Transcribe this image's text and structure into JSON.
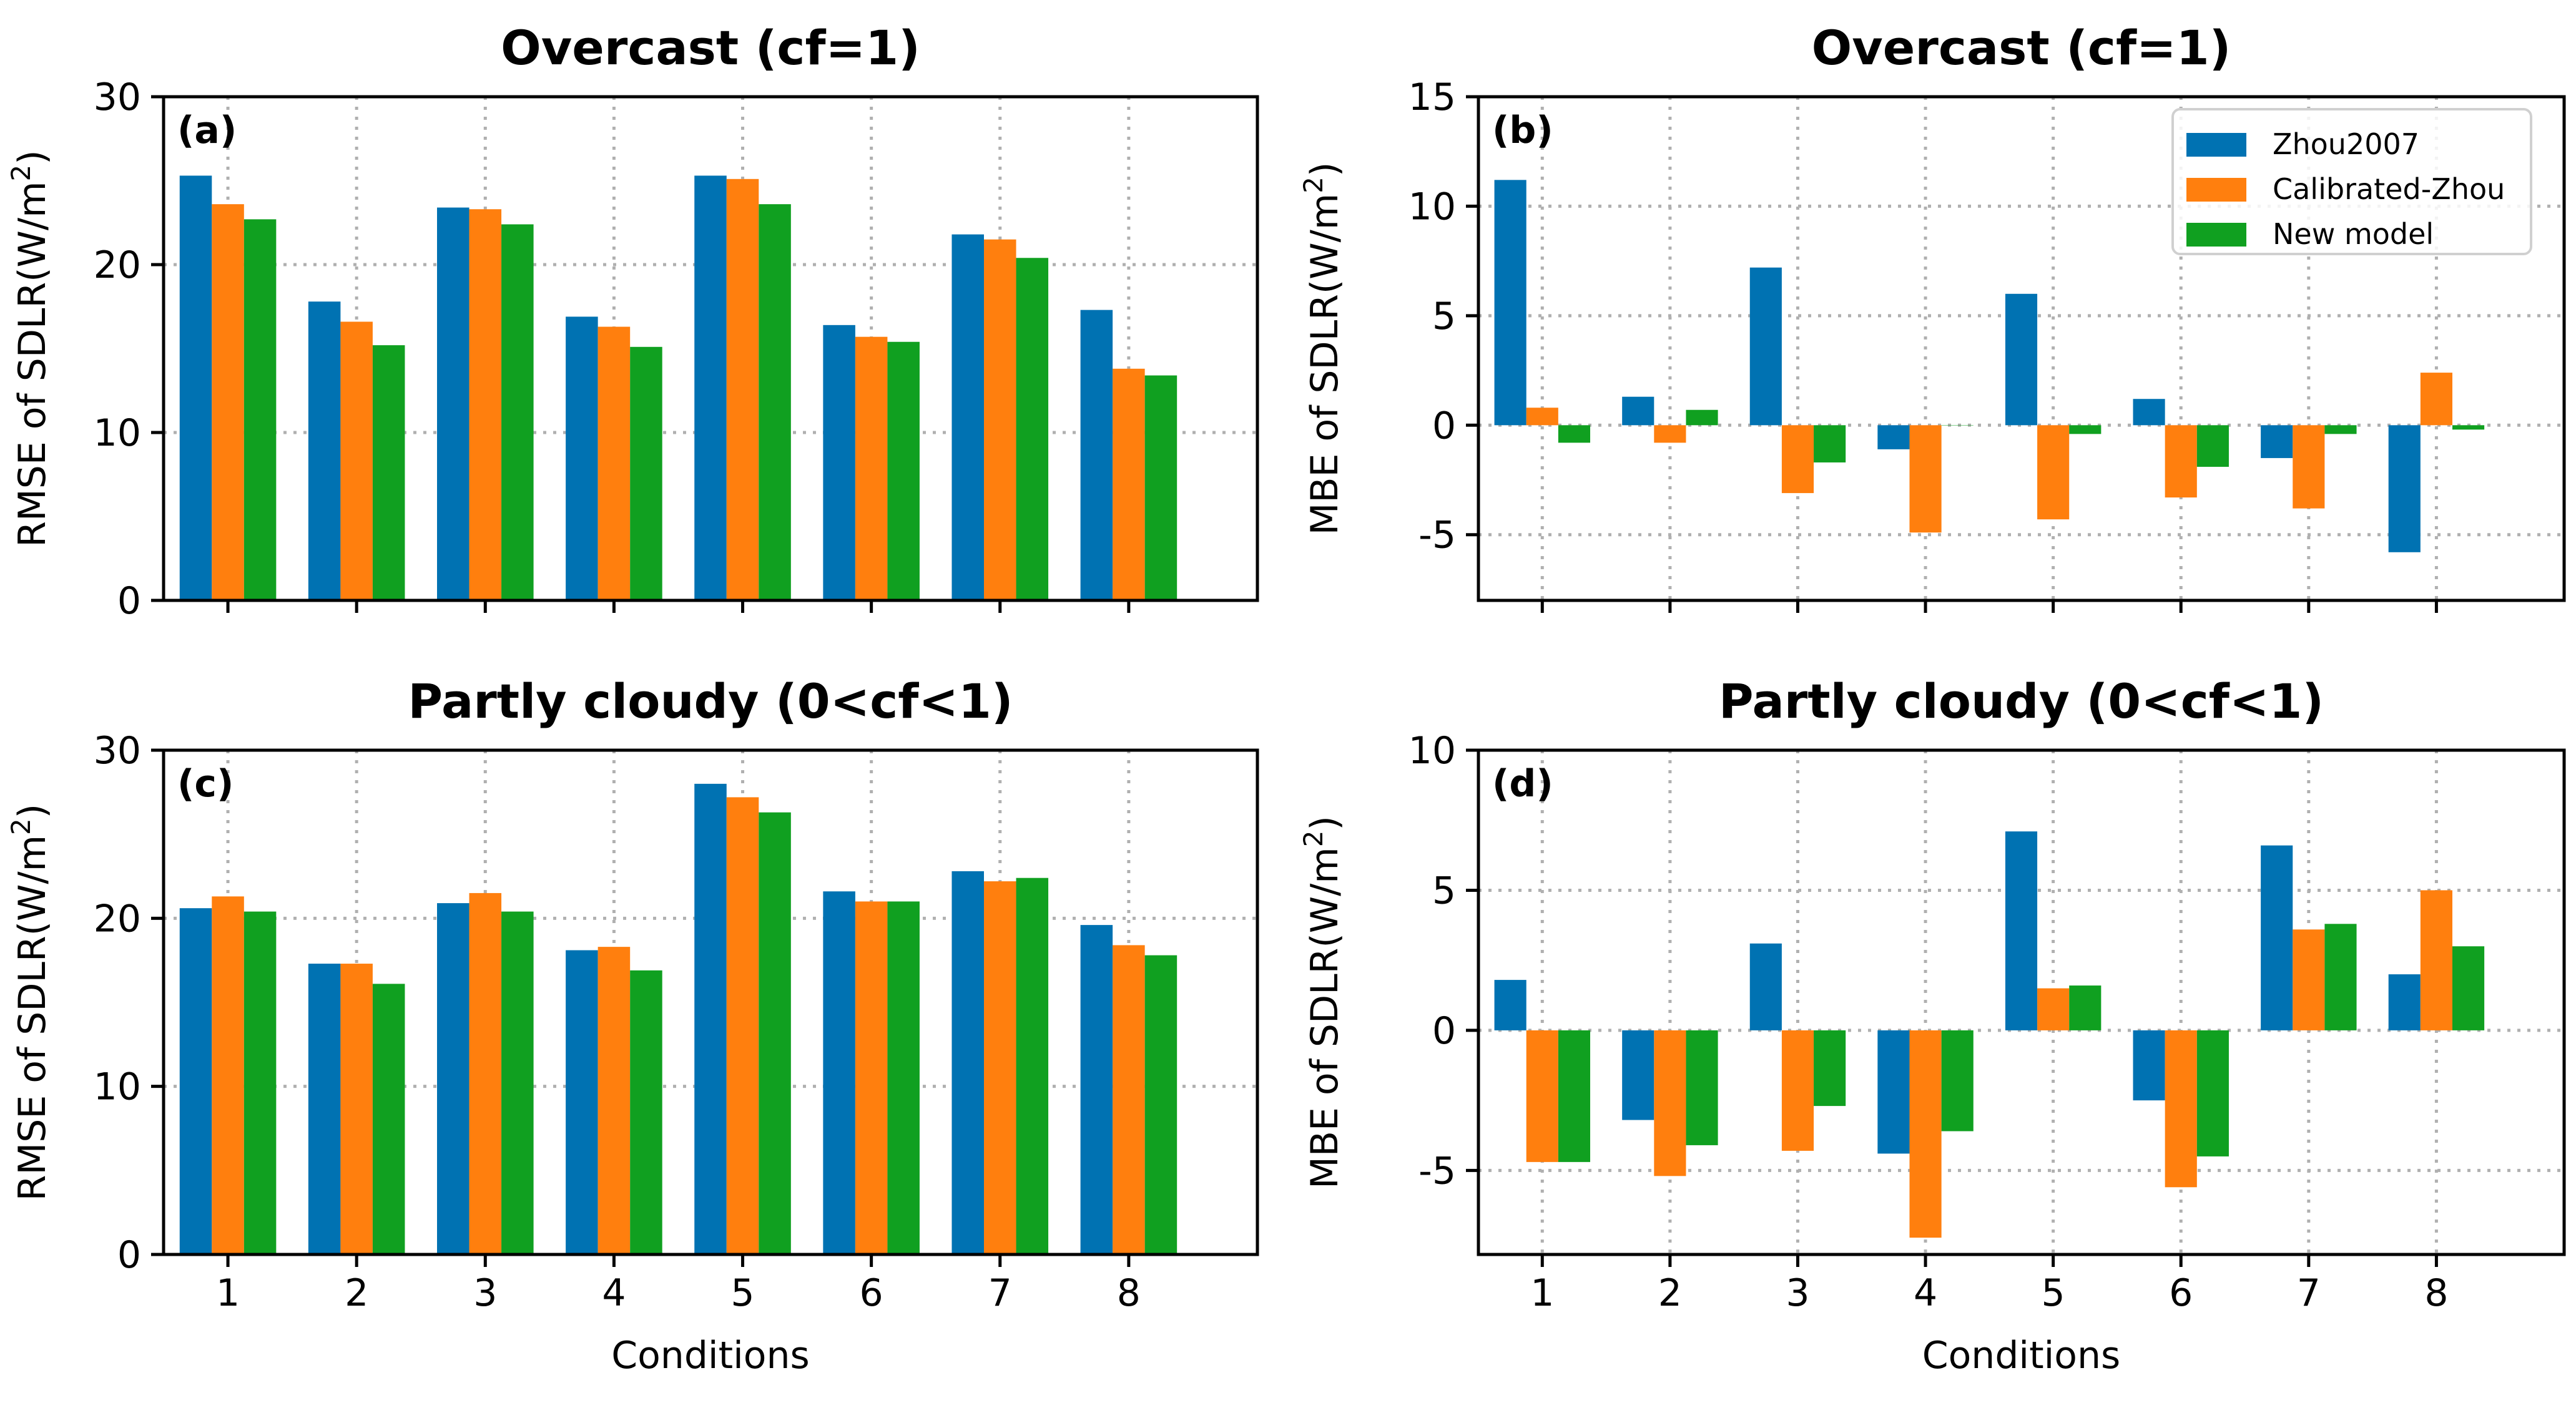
{
  "colors": {
    "Zhou2007": "#0072b2",
    "Calibrated-Zhou": "#ff7f0e",
    "New model": "#10a020"
  },
  "legend": [
    "Zhou2007",
    "Calibrated-Zhou",
    "New model"
  ],
  "chart_data": [
    {
      "id": "a",
      "panel_label": "(a)",
      "type": "bar",
      "title": "Overcast (cf=1)",
      "xlabel": "",
      "ylabel": "RMSE of SDLR(W/m",
      "categories": [
        "1",
        "2",
        "3",
        "4",
        "5",
        "6",
        "7",
        "8"
      ],
      "ylim": [
        0,
        30
      ],
      "yticks": [
        0,
        10,
        20,
        30
      ],
      "grid": true,
      "series": [
        {
          "name": "Zhou2007",
          "values": [
            25.3,
            17.8,
            23.4,
            16.9,
            25.3,
            16.4,
            21.8,
            17.3
          ]
        },
        {
          "name": "Calibrated-Zhou",
          "values": [
            23.6,
            16.6,
            23.3,
            16.3,
            25.1,
            15.7,
            21.5,
            13.8
          ]
        },
        {
          "name": "New model",
          "values": [
            22.7,
            15.2,
            22.4,
            15.1,
            23.6,
            15.4,
            20.4,
            13.4
          ]
        }
      ]
    },
    {
      "id": "b",
      "panel_label": "(b)",
      "type": "bar",
      "title": "Overcast (cf=1)",
      "xlabel": "",
      "ylabel": "MBE of SDLR(W/m",
      "categories": [
        "1",
        "2",
        "3",
        "4",
        "5",
        "6",
        "7",
        "8"
      ],
      "ylim": [
        -8,
        15
      ],
      "yticks": [
        -5,
        0,
        5,
        10,
        15
      ],
      "grid": true,
      "legend_position": "top-right",
      "series": [
        {
          "name": "Zhou2007",
          "values": [
            11.2,
            1.3,
            7.2,
            -1.1,
            6.0,
            1.2,
            -1.5,
            -5.8
          ]
        },
        {
          "name": "Calibrated-Zhou",
          "values": [
            0.8,
            -0.8,
            -3.1,
            -4.9,
            -4.3,
            -3.3,
            -3.8,
            2.4
          ]
        },
        {
          "name": "New model",
          "values": [
            -0.8,
            0.7,
            -1.7,
            0.0,
            -0.4,
            -1.9,
            -0.4,
            -0.2
          ]
        }
      ]
    },
    {
      "id": "c",
      "panel_label": "(c)",
      "type": "bar",
      "title": "Partly cloudy (0<cf<1)",
      "xlabel": "Conditions",
      "ylabel": "RMSE of SDLR(W/m",
      "categories": [
        "1",
        "2",
        "3",
        "4",
        "5",
        "6",
        "7",
        "8"
      ],
      "ylim": [
        0,
        30
      ],
      "yticks": [
        0,
        10,
        20,
        30
      ],
      "grid": true,
      "series": [
        {
          "name": "Zhou2007",
          "values": [
            20.6,
            17.3,
            20.9,
            18.1,
            28.0,
            21.6,
            22.8,
            19.6
          ]
        },
        {
          "name": "Calibrated-Zhou",
          "values": [
            21.3,
            17.3,
            21.5,
            18.3,
            27.2,
            21.0,
            22.2,
            18.4
          ]
        },
        {
          "name": "New model",
          "values": [
            20.4,
            16.1,
            20.4,
            16.9,
            26.3,
            21.0,
            22.4,
            17.8
          ]
        }
      ]
    },
    {
      "id": "d",
      "panel_label": "(d)",
      "type": "bar",
      "title": "Partly cloudy (0<cf<1)",
      "xlabel": "Conditions",
      "ylabel": "MBE of SDLR(W/m",
      "categories": [
        "1",
        "2",
        "3",
        "4",
        "5",
        "6",
        "7",
        "8"
      ],
      "ylim": [
        -8,
        10
      ],
      "yticks": [
        -5,
        0,
        5,
        10
      ],
      "grid": true,
      "series": [
        {
          "name": "Zhou2007",
          "values": [
            1.8,
            -3.2,
            3.1,
            -4.4,
            7.1,
            -2.5,
            6.6,
            2.0
          ]
        },
        {
          "name": "Calibrated-Zhou",
          "values": [
            -4.7,
            -5.2,
            -4.3,
            -7.4,
            1.5,
            -5.6,
            3.6,
            5.0
          ]
        },
        {
          "name": "New model",
          "values": [
            -4.7,
            -4.1,
            -2.7,
            -3.6,
            1.6,
            -4.5,
            3.8,
            3.0
          ]
        }
      ]
    }
  ]
}
